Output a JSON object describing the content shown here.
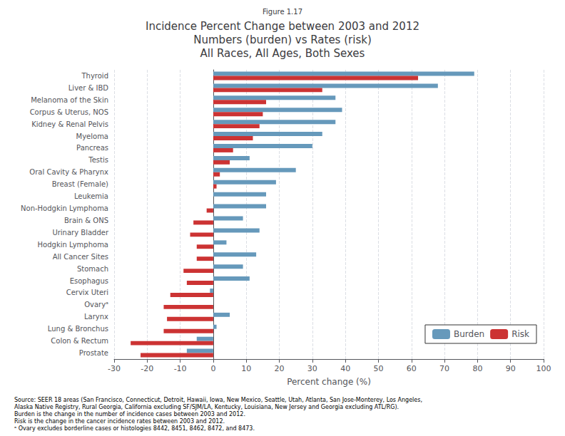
{
  "chart_data": {
    "type": "bar",
    "orientation": "horizontal",
    "title": "Incidence Percent Change between 2003 and 2012\nNumbers (burden) vs Rates (risk)\nAll Races, All Ages, Both Sexes",
    "x_label": "Percent change (%)",
    "annotations": [
      "Figure 1.17",
      "Source: SEER 18 areas (San Francisco, Connecticut, Detroit, Hawaii, Iowa, New Mexico, Seattle, Utah, Atlanta, San Jose-Monterey, Los Angeles,",
      "Alaska Native Registry, Rural Georgia, California excluding SF/SJM/LA, Kentucky, Louisiana, New Jersey and Georgia excluding ATL/RG).",
      "Burden is the change in the number of incidence cases between 2003 and 2012.",
      "Risk is the change in the cancer incidence rates between 2003 and 2012.",
      "ᵃ Ovary excludes borderline cases or histologies 8442, 8451, 8462, 8472, and 8473."
    ],
    "categories": [
      "Prostate",
      "Colon & Rectum",
      "Lung & Bronchus",
      "Larynx",
      "Ovaryᵃ",
      "Cervix Uteri",
      "Esophagus",
      "Stomach",
      "All Cancer Sites",
      "Hodgkin Lymphoma",
      "Urinary Bladder",
      "Brain & ONS",
      "Non-Hodgkin Lymphoma",
      "Leukemia",
      "Breast (Female)",
      "Oral Cavity & Pharynx",
      "Testis",
      "Pancreas",
      "Myeloma",
      "Kidney & Renal Pelvis",
      "Corpus & Uterus, NOS",
      "Melanoma of the Skin",
      "Liver & IBD",
      "Thyroid"
    ],
    "series": [
      {
        "name": "Burden",
        "color": "#6699bb",
        "values": [
          -8,
          -5,
          1,
          5,
          0,
          -1,
          11,
          9,
          13,
          4,
          14,
          9,
          16,
          16,
          19,
          25,
          11,
          30,
          33,
          37,
          39,
          37,
          68,
          79
        ]
      },
      {
        "name": "Risk",
        "color": "#cc3333",
        "values": [
          -22,
          -25,
          -15,
          -14,
          -15,
          -13,
          -8,
          -9,
          -5,
          -5,
          -7,
          -6,
          -2,
          0,
          1,
          2,
          5,
          6,
          12,
          14,
          15,
          16,
          33,
          62
        ]
      }
    ],
    "xlim": [
      -30,
      100
    ],
    "xticks": [
      -30,
      -20,
      -10,
      0,
      10,
      20,
      30,
      40,
      50,
      60,
      70,
      80,
      90,
      100
    ],
    "grid": true,
    "legend": "lower right"
  }
}
